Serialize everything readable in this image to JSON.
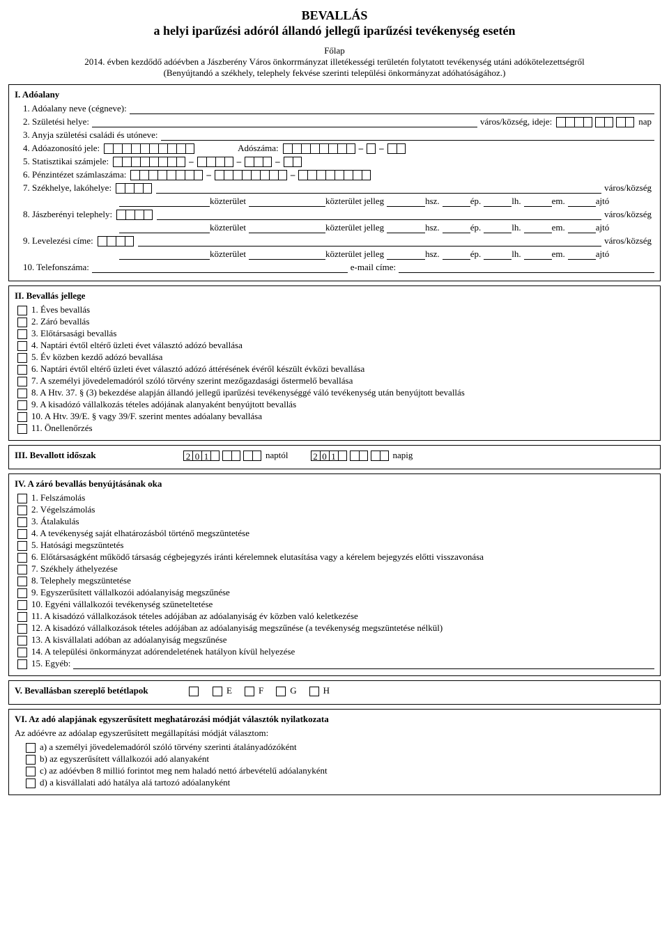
{
  "header": {
    "title_line1": "BEVALLÁS",
    "title_line2": "a helyi iparűzési adóról állandó jellegű iparűzési tevékenység esetén",
    "sub1": "Főlap",
    "sub2": "2014. évben kezdődő adóévben a Jászberény Város önkorrmányzat illetékességi területén folytatott tevékenység utáni adókötelezettségről",
    "sub3": "(Benyújtandó a székhely, telephely fekvése szerinti települési önkormányzat adóhatóságához.)"
  },
  "s1": {
    "title": "I. Adóalany",
    "r1": "1. Adóalany neve (cégneve):",
    "r2": "2. Születési helye:",
    "r2_mid": "város/község, ideje:",
    "r2_end": "nap",
    "r3": "3. Anyja születési családi és utóneve:",
    "r4": "4. Adóazonosító jele:",
    "r4_mid": "Adószáma:",
    "r5": "5. Statisztikai számjele:",
    "r6": "6. Pénzintézet számlaszáma:",
    "r7": "7. Székhelye, lakóhelye:",
    "r8": "8. Jászberényi telephely:",
    "r9": "9. Levelezési címe:",
    "r10": "10. Telefonszáma:",
    "r10_mid": "e-mail címe:",
    "varos": "város/község",
    "kozterulet": "közterület",
    "kozterulet_jelleg": "közterület jelleg",
    "hsz": "hsz.",
    "ep": "ép.",
    "lh": "lh.",
    "em": "em.",
    "ajto": "ajtó"
  },
  "s2": {
    "title": "II. Bevallás jellege",
    "items": [
      "1. Éves bevallás",
      "2. Záró bevallás",
      "3. Előtársasági bevallás",
      "4. Naptári évtől eltérő üzleti évet választó adózó bevallása",
      "5. Év közben kezdő adózó bevallása",
      "6. Naptári évtől eltérő üzleti évet választó adózó áttérésének évéről készült évközi bevallása",
      "7. A személyi jövedelemadóról szóló törvény szerint mezőgazdasági őstermelő bevallása",
      "8. A Htv. 37. § (3) bekezdése alapján állandó jellegű iparűzési tevékenységgé váló tevékenység után benyújtott bevallás",
      "9. A kisadózó vállalkozás tételes adójának alanyaként benyújtott bevallás",
      "10. A Htv. 39/E. § vagy 39/F. szerint mentes adóalany bevallása",
      "11. Önellenőrzés"
    ]
  },
  "s3": {
    "title": "III. Bevallott időszak",
    "pre": [
      "2",
      "0",
      "1"
    ],
    "naptol": "naptól",
    "napig": "napig"
  },
  "s4": {
    "title": "IV. A záró bevallás benyújtásának oka",
    "items": [
      "1. Felszámolás",
      "2. Végelszámolás",
      "3. Átalakulás",
      "4. A tevékenység saját elhatározásból történő megszüntetése",
      "5. Hatósági megszüntetés",
      "6. Előtársaságként működő társaság cégbejegyzés iránti kérelemnek elutasítása vagy a kérelem bejegyzés előtti visszavonása",
      "7. Székhely áthelyezése",
      "8. Telephely megszüntetése",
      "9. Egyszerűsített vállalkozói adóalanyiság megszűnése",
      "10. Egyéni vállalkozói tevékenység szüneteltetése",
      "11. A kisadózó vállalkozások tételes adójában az adóalanyiság év közben való keletkezése",
      "12. A kisadózó vállalkozások tételes adójában az adóalanyiság megszűnése (a tevékenység megszüntetése nélkül)",
      "13. A kisvállalati adóban az adóalanyiság megszűnése",
      "14. A települési önkormányzat adórendeletének hatályon kívül helyezése",
      "15. Egyéb:"
    ]
  },
  "s5": {
    "title": "V. Bevallásban szereplő betétlapok",
    "letters": [
      "E",
      "F",
      "G",
      "H"
    ]
  },
  "s6": {
    "title": "VI. Az adó alapjának egyszerűsített meghatározási módját választók nyilatkozata",
    "intro": "Az adóévre az adóalap egyszerűsített megállapítási módját választom:",
    "items": [
      "a) a személyi jövedelemadóról szóló törvény szerinti átalányadózóként",
      "b) az egyszerűsített vállalkozói adó alanyaként",
      "c) az adóévben 8 millió forintot meg nem haladó nettó árbevételű adóalanyként",
      "d) a kisvállalati adó hatálya alá tartozó adóalanyként"
    ]
  },
  "style": {
    "box_border": "#000000",
    "bg": "#ffffff",
    "text": "#000000",
    "font": "Times New Roman",
    "base_fontsize": 13,
    "title_fontsize": 18
  }
}
